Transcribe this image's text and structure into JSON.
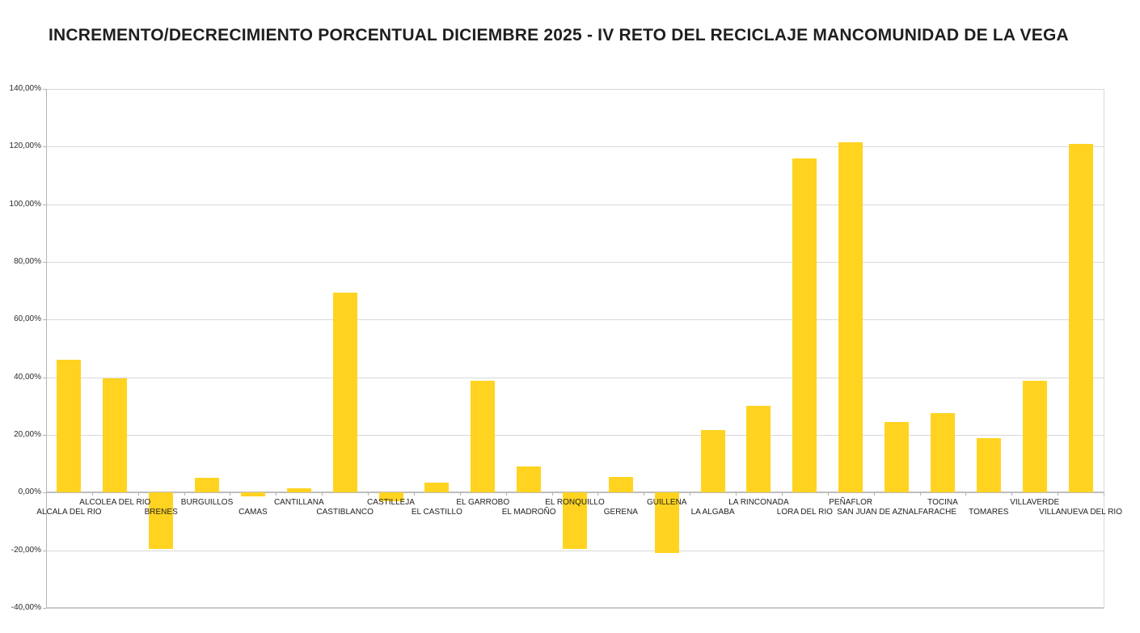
{
  "title": "INCREMENTO/DECRECIMIENTO PORCENTUAL DICIEMBRE 2025 - IV RETO DEL RECICLAJE MANCOMUNIDAD DE LA VEGA",
  "colors": {
    "bar": "#FFD320",
    "gridline": "#D9D9D9",
    "axis_line": "#B3B3B3",
    "zero_axis": "#BDBDBD",
    "text": "#222222",
    "background": "#FFFFFF"
  },
  "chart_data": {
    "type": "bar",
    "title": "INCREMENTO/DECRECIMIENTO PORCENTUAL DICIEMBRE 2025 - IV RETO DEL RECICLAJE MANCOMUNIDAD DE LA VEGA",
    "xlabel": "",
    "ylabel": "",
    "ylim": [
      -40,
      140
    ],
    "ytick_step": 20,
    "grid": true,
    "legend": false,
    "bar_color": "#FFD320",
    "categories": [
      "ALCALA DEL RIO",
      "ALCOLEA DEL RIO",
      "BRENES",
      "BURGUILLOS",
      "CAMAS",
      "CANTILLANA",
      "CASTIBLANCO",
      "CASTILLEJA",
      "EL CASTILLO",
      "EL GARROBO",
      "EL MADROÑO",
      "EL RONQUILLO",
      "GERENA",
      "GUILLENA",
      "LA ALGABA",
      "LA RINCONADA",
      "LORA DEL RIO",
      "PEÑAFLOR",
      "SAN JUAN DE AZNALFARACHE",
      "TOCINA",
      "TOMARES",
      "VILLAVERDE",
      "VILLANUEVA DEL RIO"
    ],
    "values": [
      46.2,
      39.7,
      -19.5,
      5.2,
      -1.2,
      1.4,
      69.4,
      -2.9,
      3.5,
      38.8,
      9.0,
      -19.4,
      5.3,
      -21.0,
      21.6,
      30.0,
      116.0,
      121.5,
      24.4,
      27.5,
      18.8,
      38.7,
      120.8
    ],
    "y_ticks": [
      {
        "value": 140,
        "label": "140,00%"
      },
      {
        "value": 120,
        "label": "120,00%"
      },
      {
        "value": 100,
        "label": "100,00%"
      },
      {
        "value": 80,
        "label": "80,00%"
      },
      {
        "value": 60,
        "label": "60,00%"
      },
      {
        "value": 40,
        "label": "40,00%"
      },
      {
        "value": 20,
        "label": "20,00%"
      },
      {
        "value": 0,
        "label": "0,00%"
      },
      {
        "value": -20,
        "label": "-20,00%"
      },
      {
        "value": -40,
        "label": "-40,00%"
      }
    ]
  }
}
